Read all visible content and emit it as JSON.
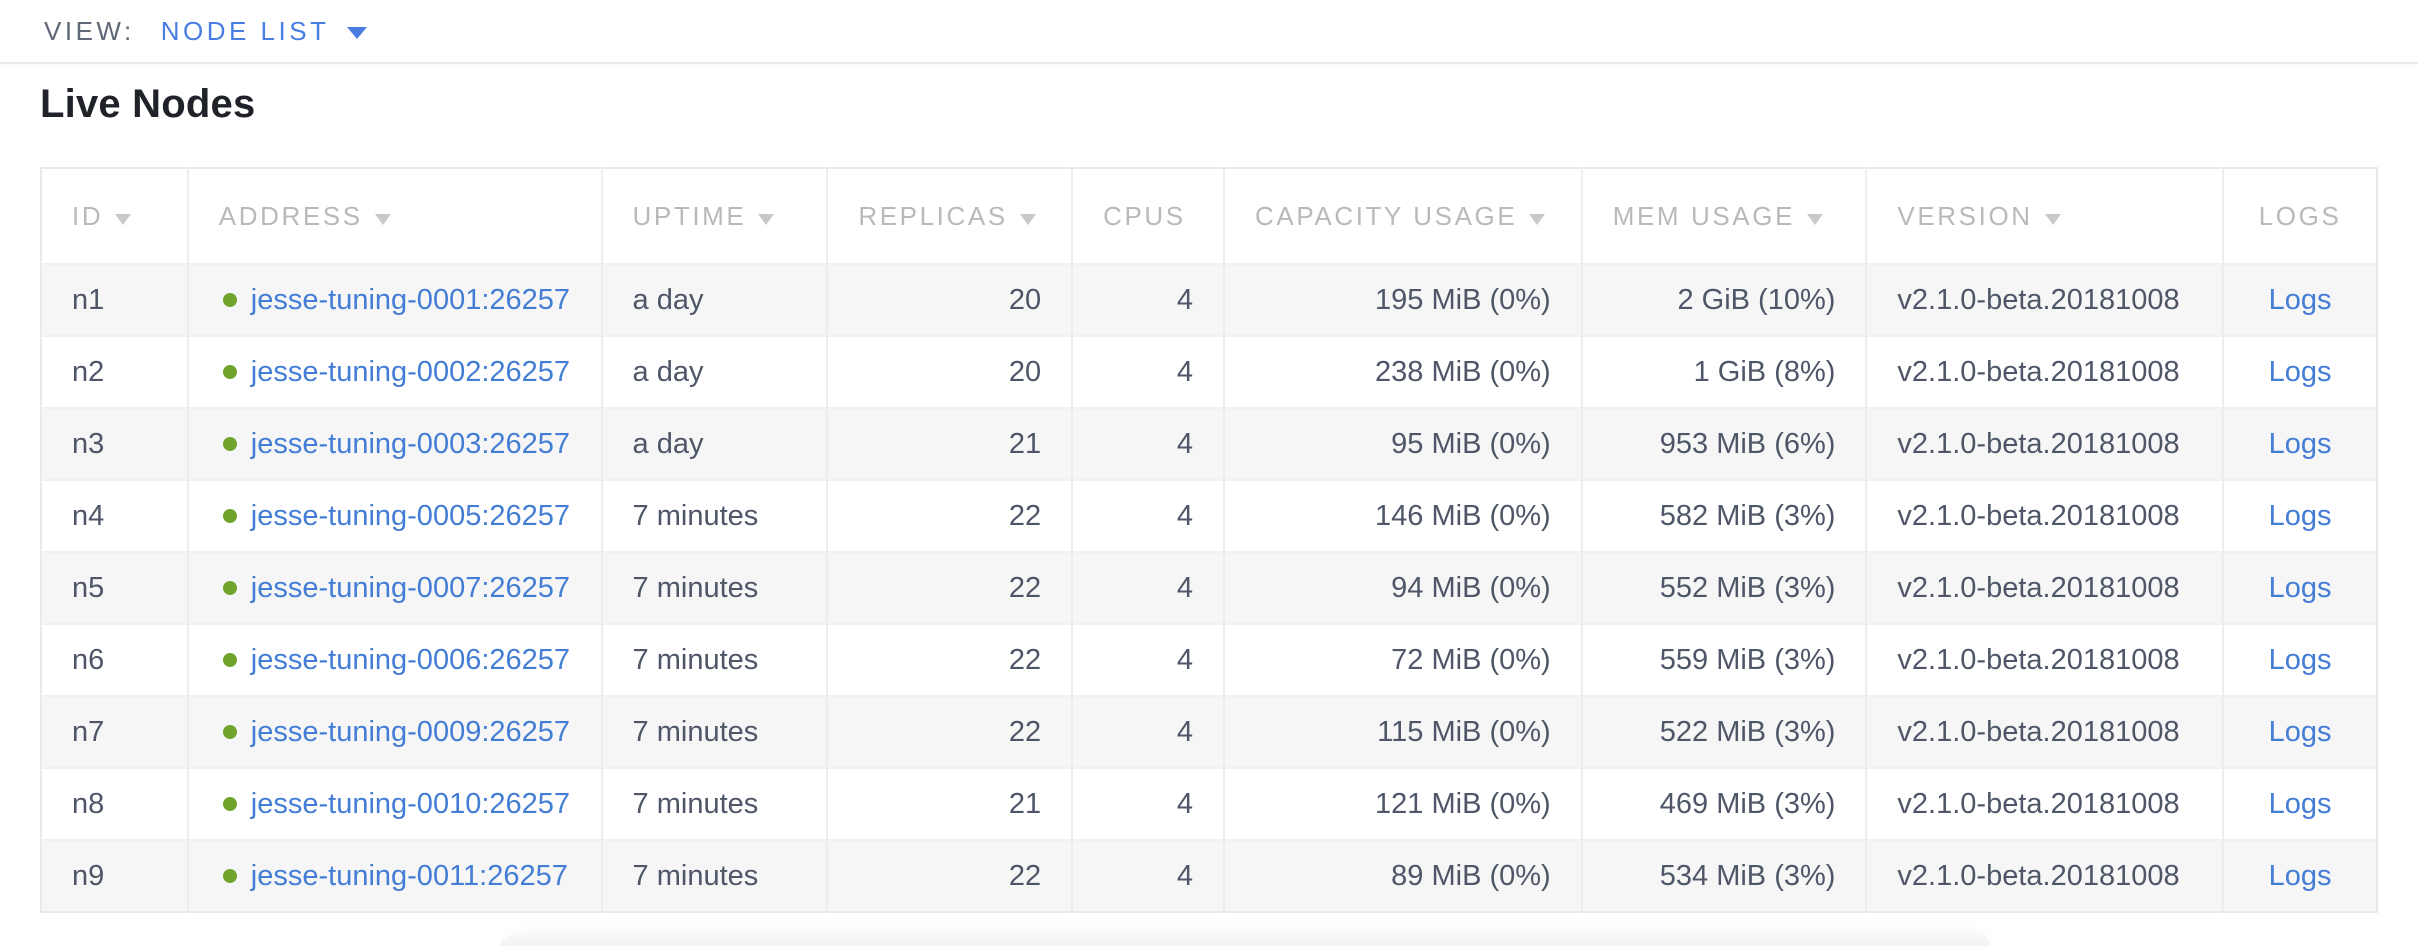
{
  "viewbar": {
    "label": "VIEW:",
    "selected_view": "NODE LIST"
  },
  "page": {
    "title": "Live Nodes"
  },
  "table": {
    "columns": [
      {
        "key": "id",
        "label": "ID",
        "sortable": true,
        "width": "6.28%",
        "align": "left"
      },
      {
        "key": "address",
        "label": "ADDRESS",
        "sortable": true,
        "width": "17.70%",
        "align": "left",
        "type": "link-with-dot"
      },
      {
        "key": "uptime",
        "label": "UPTIME",
        "sortable": true,
        "width": "9.66%",
        "align": "left"
      },
      {
        "key": "replicas",
        "label": "REPLICAS",
        "sortable": true,
        "width": "10.47%",
        "align": "right"
      },
      {
        "key": "cpus",
        "label": "CPUS",
        "sortable": false,
        "width": "6.50%",
        "align": "right"
      },
      {
        "key": "capacity_usage",
        "label": "CAPACITY USAGE",
        "sortable": true,
        "width": "15.30%",
        "align": "right"
      },
      {
        "key": "mem_usage",
        "label": "MEM USAGE",
        "sortable": true,
        "width": "12.18%",
        "align": "right"
      },
      {
        "key": "version",
        "label": "VERSION",
        "sortable": true,
        "width": "15.26%",
        "align": "left"
      },
      {
        "key": "logs",
        "label": "LOGS",
        "sortable": false,
        "width": "6.58%",
        "align": "center",
        "header_align": "center",
        "type": "link"
      }
    ],
    "rows": [
      {
        "id": "n1",
        "status": "live",
        "address": "jesse-tuning-0001:26257",
        "uptime": "a day",
        "replicas": "20",
        "cpus": "4",
        "capacity_usage": "195 MiB (0%)",
        "mem_usage": "2 GiB (10%)",
        "version": "v2.1.0-beta.20181008",
        "logs": "Logs"
      },
      {
        "id": "n2",
        "status": "live",
        "address": "jesse-tuning-0002:26257",
        "uptime": "a day",
        "replicas": "20",
        "cpus": "4",
        "capacity_usage": "238 MiB (0%)",
        "mem_usage": "1 GiB (8%)",
        "version": "v2.1.0-beta.20181008",
        "logs": "Logs"
      },
      {
        "id": "n3",
        "status": "live",
        "address": "jesse-tuning-0003:26257",
        "uptime": "a day",
        "replicas": "21",
        "cpus": "4",
        "capacity_usage": "95 MiB (0%)",
        "mem_usage": "953 MiB (6%)",
        "version": "v2.1.0-beta.20181008",
        "logs": "Logs"
      },
      {
        "id": "n4",
        "status": "live",
        "address": "jesse-tuning-0005:26257",
        "uptime": "7 minutes",
        "replicas": "22",
        "cpus": "4",
        "capacity_usage": "146 MiB (0%)",
        "mem_usage": "582 MiB (3%)",
        "version": "v2.1.0-beta.20181008",
        "logs": "Logs"
      },
      {
        "id": "n5",
        "status": "live",
        "address": "jesse-tuning-0007:26257",
        "uptime": "7 minutes",
        "replicas": "22",
        "cpus": "4",
        "capacity_usage": "94 MiB (0%)",
        "mem_usage": "552 MiB (3%)",
        "version": "v2.1.0-beta.20181008",
        "logs": "Logs"
      },
      {
        "id": "n6",
        "status": "live",
        "address": "jesse-tuning-0006:26257",
        "uptime": "7 minutes",
        "replicas": "22",
        "cpus": "4",
        "capacity_usage": "72 MiB (0%)",
        "mem_usage": "559 MiB (3%)",
        "version": "v2.1.0-beta.20181008",
        "logs": "Logs"
      },
      {
        "id": "n7",
        "status": "live",
        "address": "jesse-tuning-0009:26257",
        "uptime": "7 minutes",
        "replicas": "22",
        "cpus": "4",
        "capacity_usage": "115 MiB (0%)",
        "mem_usage": "522 MiB (3%)",
        "version": "v2.1.0-beta.20181008",
        "logs": "Logs"
      },
      {
        "id": "n8",
        "status": "live",
        "address": "jesse-tuning-0010:26257",
        "uptime": "7 minutes",
        "replicas": "21",
        "cpus": "4",
        "capacity_usage": "121 MiB (0%)",
        "mem_usage": "469 MiB (3%)",
        "version": "v2.1.0-beta.20181008",
        "logs": "Logs"
      },
      {
        "id": "n9",
        "status": "live",
        "address": "jesse-tuning-0011:26257",
        "uptime": "7 minutes",
        "replicas": "22",
        "cpus": "4",
        "capacity_usage": "89 MiB (0%)",
        "mem_usage": "534 MiB (3%)",
        "version": "v2.1.0-beta.20181008",
        "logs": "Logs"
      }
    ]
  },
  "colors": {
    "accent_blue": "#4a7de2",
    "link_blue": "#437dd6",
    "status_green": "#72a42c",
    "header_text_gray": "#b9b9b9",
    "body_text": "#4e5668",
    "row_stripe": "#f6f6f6",
    "table_border": "#e9e9e9"
  }
}
